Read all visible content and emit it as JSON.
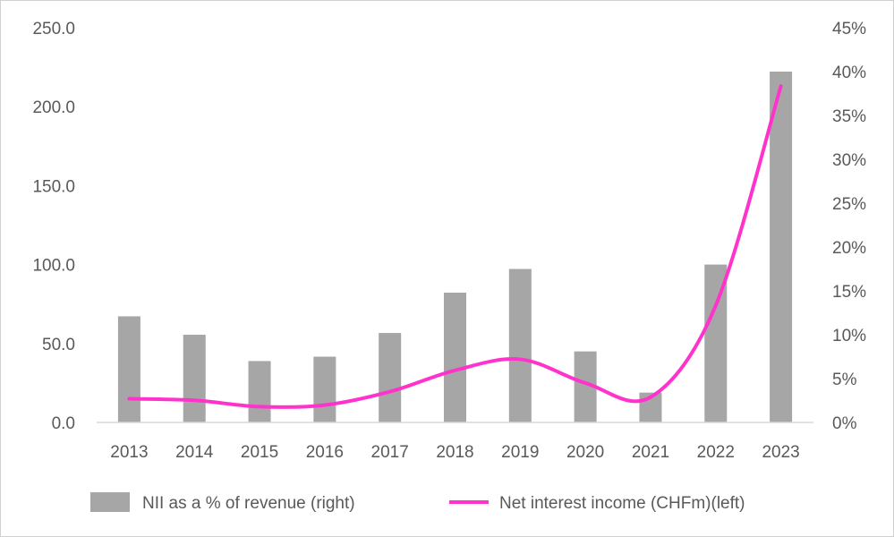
{
  "chart_data": {
    "type": "bar",
    "categories": [
      "2013",
      "2014",
      "2015",
      "2016",
      "2017",
      "2018",
      "2019",
      "2020",
      "2021",
      "2022",
      "2023"
    ],
    "left_axis": {
      "ylim": [
        0,
        250
      ],
      "ticks": [
        "0.0",
        "50.0",
        "100.0",
        "150.0",
        "200.0",
        "250.0"
      ]
    },
    "right_axis": {
      "ylim": [
        0,
        45
      ],
      "ticks": [
        "0%",
        "5%",
        "10%",
        "15%",
        "20%",
        "25%",
        "30%",
        "35%",
        "40%",
        "45%"
      ]
    },
    "grid": false,
    "legend_position": "bottom",
    "series": [
      {
        "name": "NII as a % of revenue (right)",
        "type": "bar",
        "axis": "right",
        "color": "#a6a6a6",
        "values": [
          12.1,
          10.0,
          7.0,
          7.5,
          10.2,
          14.8,
          17.5,
          8.1,
          3.4,
          18.0,
          40.0
        ]
      },
      {
        "name": "Net interest income (CHFm)(left)",
        "type": "line",
        "axis": "left",
        "color": "#ff33cc",
        "values": [
          15,
          14,
          10,
          11,
          19.5,
          33,
          40,
          25,
          16,
          74,
          213
        ]
      }
    ]
  }
}
